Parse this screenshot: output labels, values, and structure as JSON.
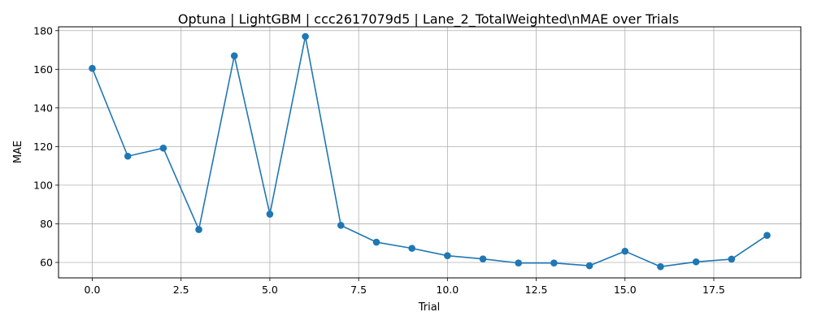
{
  "chart_data": {
    "type": "line",
    "title": "Optuna | LightGBM | ccc2617079d5 | Lane_2_TotalWeighted\\nMAE over Trials",
    "xlabel": "Trial",
    "ylabel": "MAE",
    "xlim": [
      -0.95,
      19.95
    ],
    "ylim": [
      52,
      182
    ],
    "xticks": [
      0.0,
      2.5,
      5.0,
      7.5,
      10.0,
      12.5,
      15.0,
      17.5
    ],
    "xtick_labels": [
      "0.0",
      "2.5",
      "5.0",
      "7.5",
      "10.0",
      "12.5",
      "15.0",
      "17.5"
    ],
    "yticks": [
      60,
      80,
      100,
      120,
      140,
      160,
      180
    ],
    "ytick_labels": [
      "60",
      "80",
      "100",
      "120",
      "140",
      "160",
      "180"
    ],
    "grid": true,
    "series": [
      {
        "color": "#1f77b4",
        "marker": "circle",
        "x": [
          0,
          1,
          2,
          3,
          4,
          5,
          6,
          7,
          8,
          9,
          10,
          11,
          12,
          13,
          14,
          15,
          16,
          17,
          18,
          19
        ],
        "y": [
          160.5,
          115.0,
          119.2,
          77.0,
          167.0,
          85.0,
          177.0,
          79.2,
          70.5,
          67.3,
          63.5,
          61.8,
          59.7,
          59.7,
          58.3,
          65.8,
          57.8,
          60.3,
          61.7,
          74.0
        ]
      }
    ]
  }
}
